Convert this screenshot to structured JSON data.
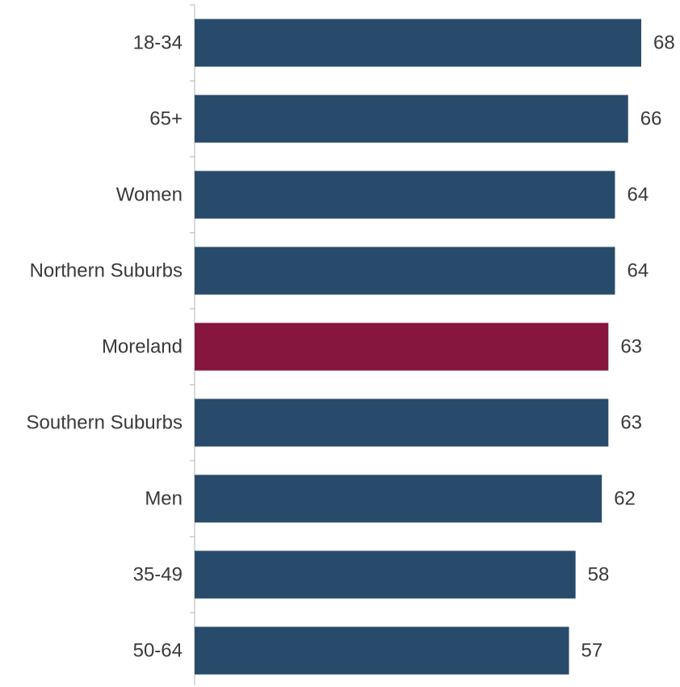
{
  "chart_data": {
    "type": "bar",
    "orientation": "horizontal",
    "categories": [
      "18-34",
      "65+",
      "Women",
      "Northern Suburbs",
      "Moreland",
      "Southern Suburbs",
      "Men",
      "35-49",
      "50-64"
    ],
    "values": [
      68,
      66,
      64,
      64,
      63,
      63,
      62,
      58,
      57
    ],
    "colors": [
      "#284b6b",
      "#284b6b",
      "#284b6b",
      "#284b6b",
      "#87163f",
      "#284b6b",
      "#284b6b",
      "#284b6b",
      "#284b6b"
    ],
    "highlight_category": "Moreland",
    "xlim": [
      0,
      70
    ],
    "data_labels": true,
    "grid": false,
    "legend": "none"
  }
}
